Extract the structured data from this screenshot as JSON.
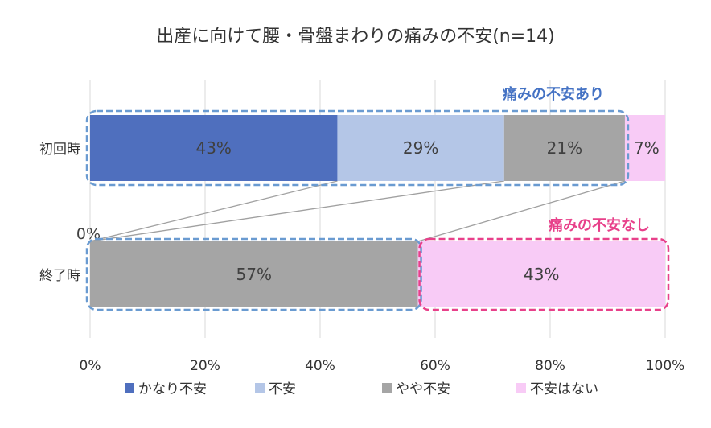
{
  "chart_data": {
    "type": "bar",
    "orientation": "horizontal",
    "stacked": true,
    "title": "出産に向けて腰・骨盤まわりの痛みの不安(n=14)",
    "categories": [
      "初回時",
      "終了時"
    ],
    "series": [
      {
        "name": "かなり不安",
        "values": [
          43,
          0
        ],
        "color": "#4F6FBE"
      },
      {
        "name": "不安",
        "values": [
          29,
          0
        ],
        "color": "#B4C6E7"
      },
      {
        "name": "やや不安",
        "values": [
          21,
          57
        ],
        "color": "#A5A5A5"
      },
      {
        "name": "不安はない",
        "values": [
          7,
          43
        ],
        "color": "#F8CBF6"
      }
    ],
    "data_labels": [
      [
        "43%",
        "29%",
        "21%",
        "7%"
      ],
      [
        "0%",
        "57%",
        "43%"
      ]
    ],
    "x_ticks": [
      "0%",
      "20%",
      "40%",
      "60%",
      "80%",
      "100%"
    ],
    "xlim": [
      0,
      100
    ],
    "grid": true,
    "legend_position": "bottom",
    "annotations": [
      {
        "text": "痛みの不安あり",
        "color": "#4472C4"
      },
      {
        "text": "痛みの不安なし",
        "color": "#E8408A"
      }
    ]
  }
}
